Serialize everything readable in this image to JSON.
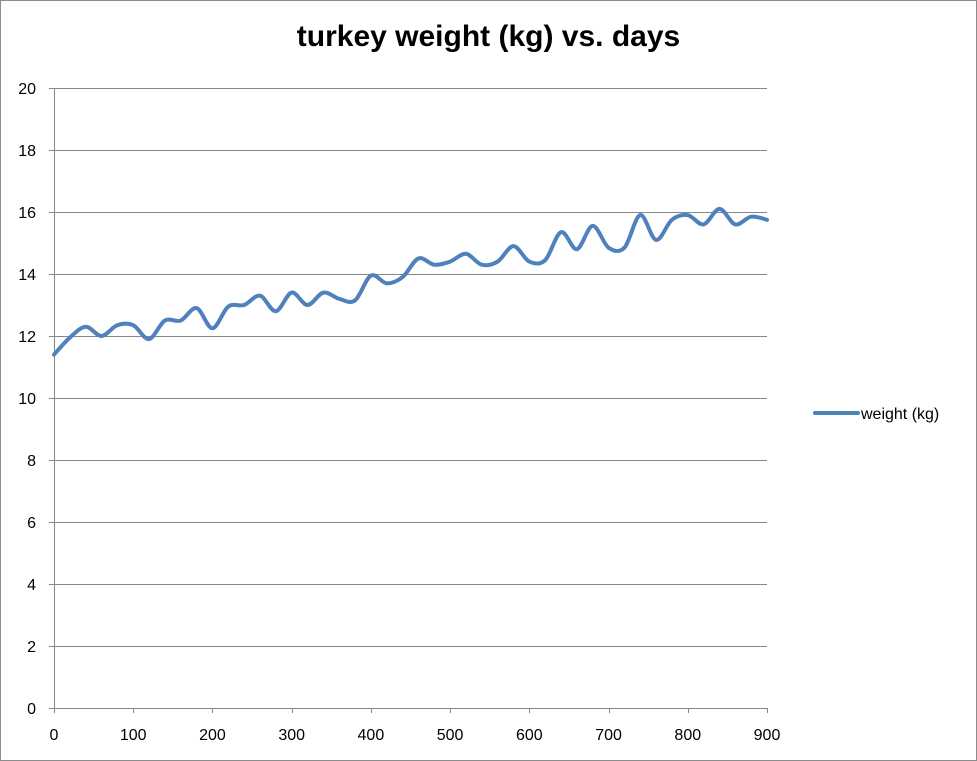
{
  "chart_data": {
    "type": "line",
    "title": "turkey weight (kg) vs. days",
    "xlabel": "",
    "ylabel": "",
    "xlim": [
      0,
      900
    ],
    "ylim": [
      0,
      20
    ],
    "x_ticks": [
      "0",
      "100",
      "200",
      "300",
      "400",
      "500",
      "600",
      "700",
      "800",
      "900"
    ],
    "y_ticks": [
      "0",
      "2",
      "4",
      "6",
      "8",
      "10",
      "12",
      "14",
      "16",
      "18",
      "20"
    ],
    "grid": "horizontal",
    "legend": "right",
    "series": [
      {
        "name": "weight (kg)",
        "color": "#4f81bd",
        "x": [
          0,
          20,
          40,
          60,
          80,
          100,
          120,
          140,
          160,
          180,
          200,
          220,
          240,
          260,
          280,
          300,
          320,
          340,
          360,
          380,
          400,
          420,
          440,
          460,
          480,
          500,
          520,
          540,
          560,
          580,
          600,
          620,
          640,
          660,
          680,
          700,
          720,
          740,
          760,
          780,
          800,
          820,
          840,
          860,
          880,
          900
        ],
        "y": [
          11.4,
          11.95,
          12.3,
          12.0,
          12.35,
          12.35,
          11.9,
          12.5,
          12.5,
          12.9,
          12.25,
          12.95,
          13.0,
          13.3,
          12.8,
          13.4,
          13.0,
          13.4,
          13.2,
          13.15,
          13.95,
          13.7,
          13.9,
          14.5,
          14.3,
          14.4,
          14.65,
          14.3,
          14.4,
          14.9,
          14.4,
          14.45,
          15.35,
          14.8,
          15.55,
          14.85,
          14.85,
          15.9,
          15.1,
          15.75,
          15.9,
          15.6,
          16.1,
          15.6,
          15.85,
          15.75
        ]
      }
    ]
  }
}
